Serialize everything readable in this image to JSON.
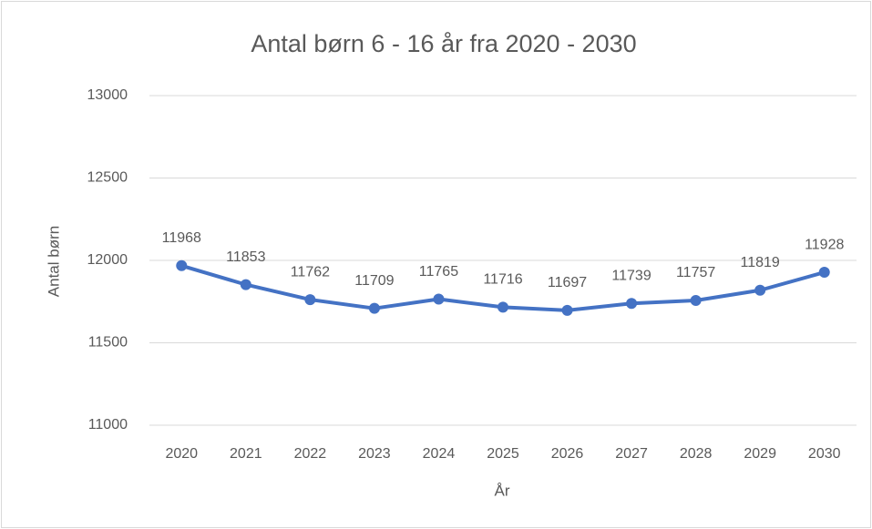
{
  "chart_data": {
    "type": "line",
    "title": "Antal børn 6 - 16 år fra 2020 - 2030",
    "x_label": "År",
    "y_label": "Antal børn",
    "categories": [
      "2020",
      "2021",
      "2022",
      "2023",
      "2024",
      "2025",
      "2026",
      "2027",
      "2028",
      "2029",
      "2030"
    ],
    "series": [
      {
        "name": "Antal børn",
        "color": "#4472c4",
        "values": [
          11968,
          11853,
          11762,
          11709,
          11765,
          11716,
          11697,
          11739,
          11757,
          11819,
          11928
        ]
      }
    ],
    "ylim": [
      11000,
      13000
    ],
    "yticks": [
      11000,
      11500,
      12000,
      12500,
      13000
    ],
    "grid": true,
    "data_labels": true
  }
}
